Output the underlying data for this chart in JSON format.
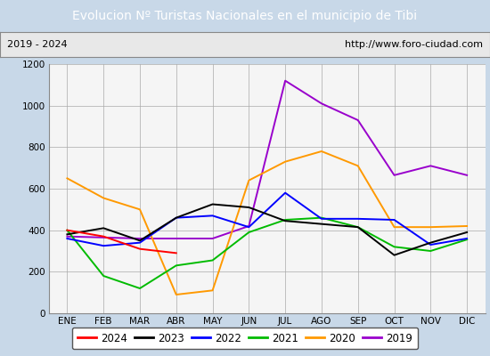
{
  "title": "Evolucion Nº Turistas Nacionales en el municipio de Tibi",
  "subtitle_left": "2019 - 2024",
  "subtitle_right": "http://www.foro-ciudad.com",
  "months": [
    "ENE",
    "FEB",
    "MAR",
    "ABR",
    "MAY",
    "JUN",
    "JUL",
    "AGO",
    "SEP",
    "OCT",
    "NOV",
    "DIC"
  ],
  "series": {
    "2024": [
      400,
      370,
      310,
      290,
      null,
      null,
      null,
      null,
      null,
      null,
      null,
      null
    ],
    "2023": [
      380,
      410,
      350,
      460,
      525,
      510,
      445,
      430,
      415,
      280,
      340,
      390
    ],
    "2022": [
      360,
      325,
      340,
      460,
      470,
      415,
      580,
      455,
      455,
      450,
      330,
      360
    ],
    "2021": [
      400,
      180,
      120,
      230,
      255,
      390,
      450,
      460,
      415,
      320,
      300,
      355
    ],
    "2020": [
      650,
      555,
      500,
      90,
      110,
      640,
      730,
      780,
      710,
      415,
      415,
      420
    ],
    "2019": [
      370,
      365,
      360,
      360,
      360,
      420,
      1120,
      1010,
      930,
      665,
      710,
      665
    ]
  },
  "colors": {
    "2024": "#ff0000",
    "2023": "#000000",
    "2022": "#0000ff",
    "2021": "#00bb00",
    "2020": "#ff9900",
    "2019": "#9900cc"
  },
  "ylim": [
    0,
    1200
  ],
  "yticks": [
    0,
    200,
    400,
    600,
    800,
    1000,
    1200
  ],
  "title_bg_color": "#4472c4",
  "title_text_color": "#ffffff",
  "plot_bg_color": "#f5f5f5",
  "outer_bg_color": "#c8d8e8",
  "grid_color": "#aaaaaa",
  "legend_order": [
    "2024",
    "2023",
    "2022",
    "2021",
    "2020",
    "2019"
  ]
}
